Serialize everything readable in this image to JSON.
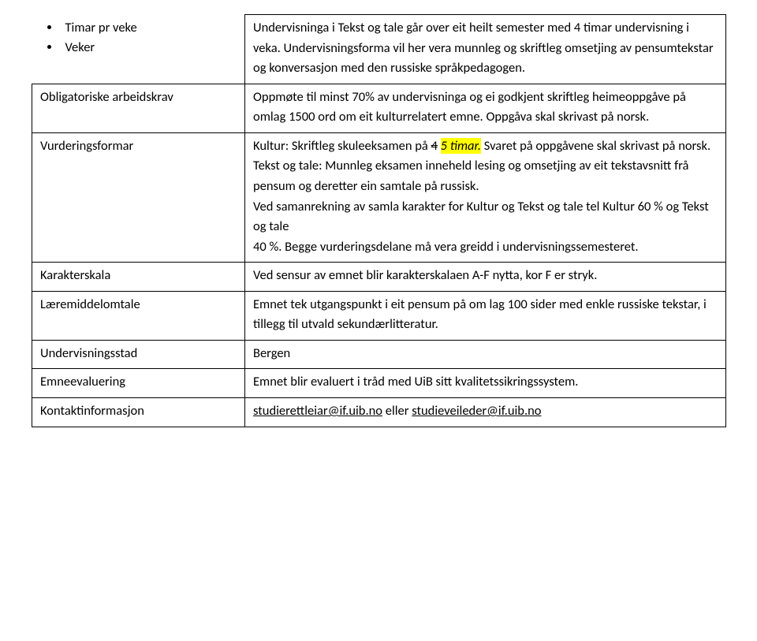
{
  "rows": {
    "timar": {
      "bullet1": "Timar pr veke",
      "bullet2": "Veker",
      "rhs": "Undervisninga i Tekst og tale går over eit heilt semester med 4 timar undervisning i veka. Undervisningsforma vil her vera munnleg og skriftleg omsetjing av pensumtekstar og konversasjon med den russiske språkpedagogen."
    },
    "oblig": {
      "label": "Obligatoriske arbeidskrav",
      "rhs": "Oppmøte til minst 70% av undervisninga og ei godkjent skriftleg heimeoppgåve på omlag 1500 ord om eit kulturrelatert emne. Oppgåva skal skrivast på norsk."
    },
    "vurdering": {
      "label": "Vurderingsformar",
      "pre": "Kultur: Skriftleg skuleeksamen på ",
      "strike": "4",
      "space": " ",
      "hilite": "5 timar.",
      "post1": " Svaret på oppgåvene skal skrivast på norsk.",
      "p2": "Tekst og tale: Munnleg eksamen inneheld lesing og omsetjing av eit tekstavsnitt frå pensum og deretter ein samtale på russisk.",
      "p3": "Ved samanrekning av samla karakter for Kultur og Tekst og tale tel Kultur 60 % og Tekst og tale",
      "p4": "40 %. Begge vurderingsdelane må vera greidd i undervisningssemesteret."
    },
    "karakter": {
      "label": "Karakterskala",
      "rhs": "Ved sensur av emnet blir karakterskalaen A-F nytta, kor F er stryk."
    },
    "laeremiddel": {
      "label": "Læremiddelomtale",
      "rhs": "Emnet tek utgangspunkt i eit pensum på om lag 100 sider med enkle russiske tekstar, i tillegg til utvald sekundærlitteratur."
    },
    "undervisningsstad": {
      "label": "Undervisningsstad",
      "rhs": "Bergen"
    },
    "emneeval": {
      "label": "Emneevaluering",
      "rhs": "Emnet blir evaluert i tråd med UiB sitt kvalitetssikringssystem."
    },
    "kontakt": {
      "label": "Kontaktinformasjon",
      "mail1": "studierettleiar@if.uib.no",
      "mid": " eller ",
      "mail2": "studieveileder@if.uib.no"
    }
  }
}
